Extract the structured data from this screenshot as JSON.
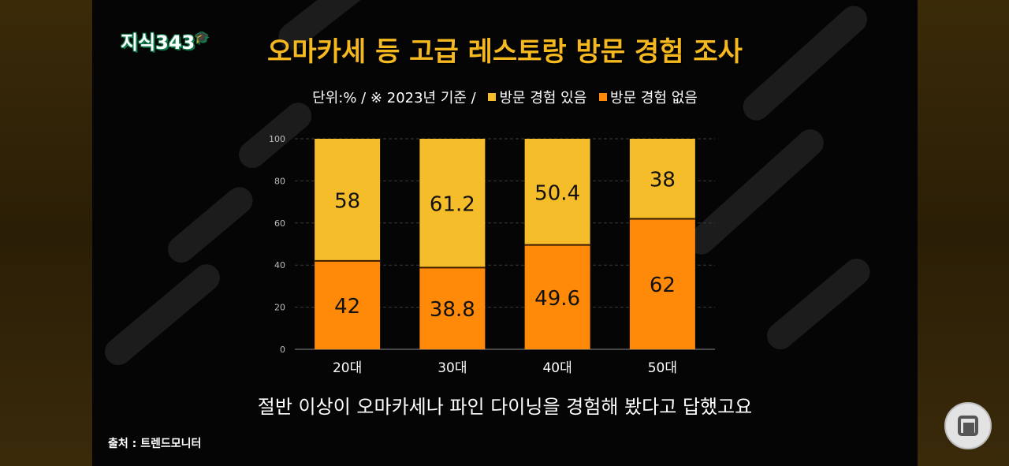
{
  "logo": {
    "text": "지식343",
    "cap": "🎓"
  },
  "title": "오마카세 등 고급 레스토랑 방문 경험 조사",
  "subtitle": {
    "unit": "단위:% / ※ 2023년 기준 /",
    "legend_visited": "방문 경험 있음",
    "legend_not_visited": "방문 경험 없음"
  },
  "caption": "절반 이상이 오마카세나 파인 다이닝을 경험해 봤다고 답했고요",
  "source": "출처 : 트렌드모니터",
  "colors": {
    "visited": "#f6bd2b",
    "not_visited": "#ff8a0a",
    "title": "#f5b81f"
  },
  "chart_data": {
    "type": "bar",
    "stacked": true,
    "categories": [
      "20대",
      "30대",
      "40대",
      "50대"
    ],
    "series": [
      {
        "name": "방문 경험 없음",
        "values": [
          42,
          38.8,
          49.6,
          62
        ]
      },
      {
        "name": "방문 경험 있음",
        "values": [
          58,
          61.2,
          50.4,
          38
        ]
      }
    ],
    "yticks": [
      0,
      20,
      40,
      60,
      80,
      100
    ],
    "ylim": [
      0,
      100
    ],
    "grid": true,
    "legend": "top"
  }
}
